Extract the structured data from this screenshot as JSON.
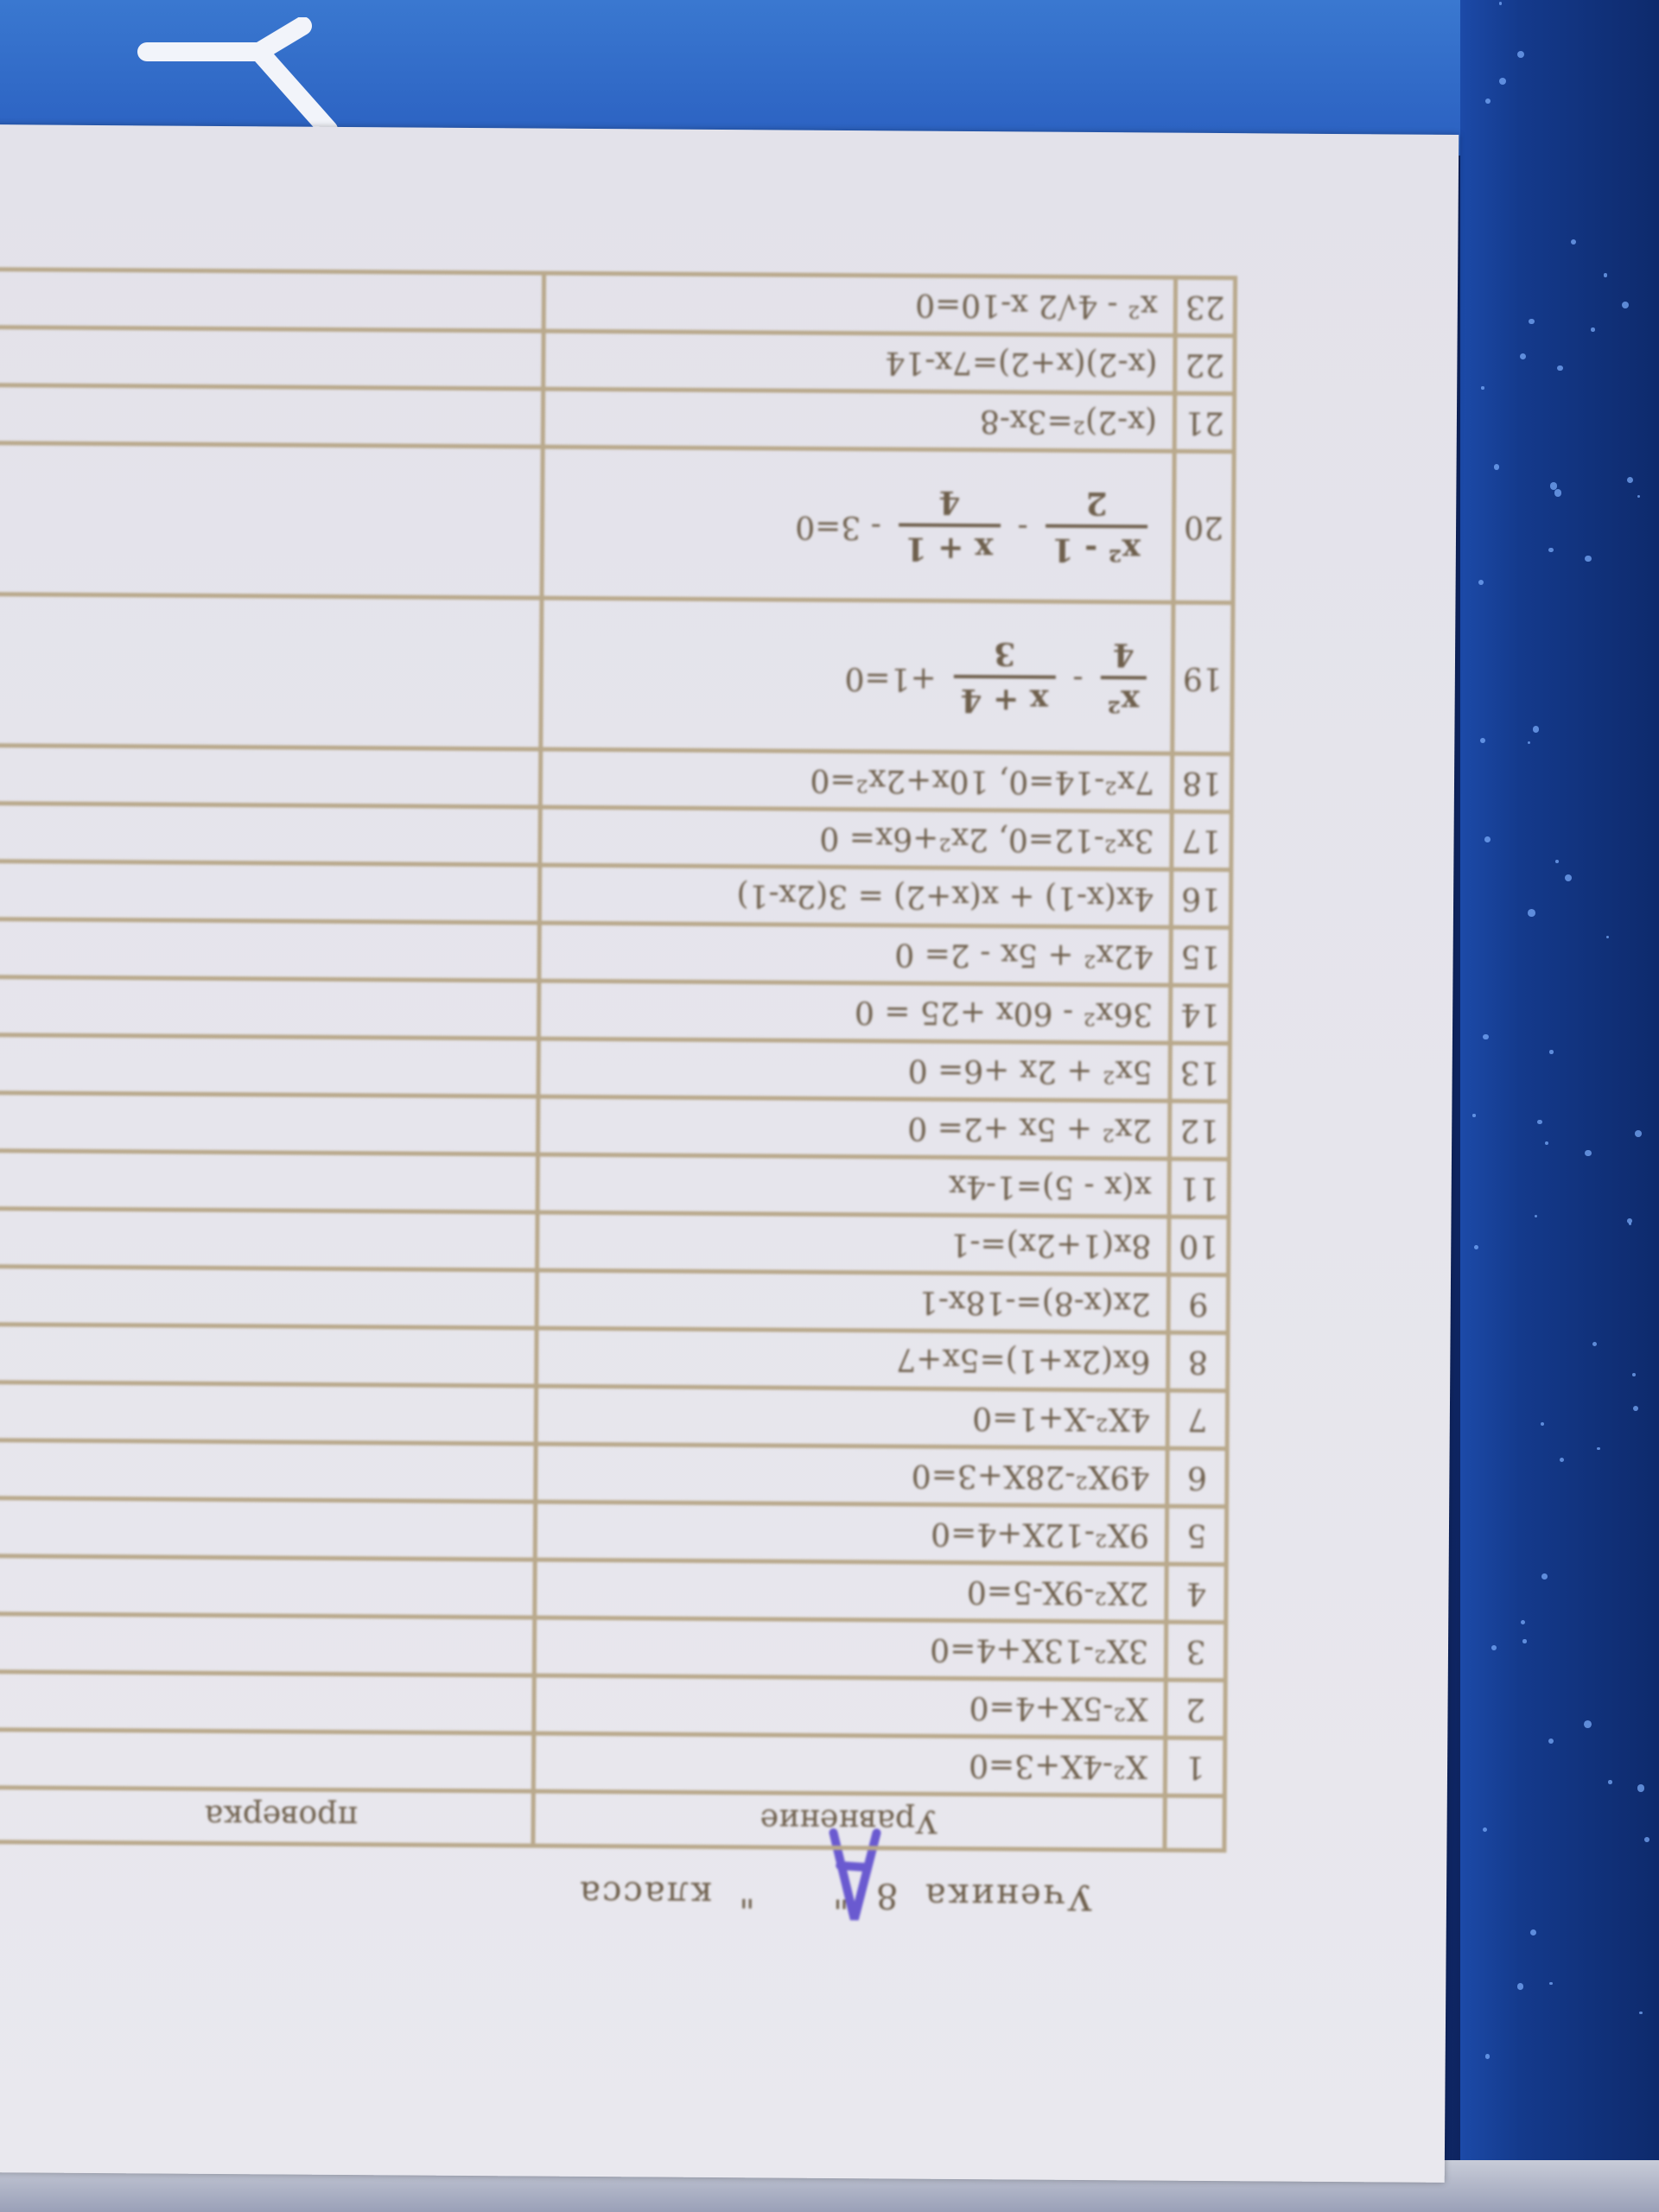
{
  "document": {
    "title": "Ученика  8  \"      \"  класса",
    "handwritten_class_letter": "А",
    "columns": {
      "equation": "Уравнение",
      "check": "проверка"
    },
    "rows": [
      {
        "n": "1",
        "eq": "X²-4X+3=0"
      },
      {
        "n": "2",
        "eq": "X²-5X+4=0"
      },
      {
        "n": "3",
        "eq": "3X²-13X+4=0"
      },
      {
        "n": "4",
        "eq": "2X²-9X-5=0"
      },
      {
        "n": "5",
        "eq": "9X²-12X+4=0"
      },
      {
        "n": "6",
        "eq": "49X²-28X+3=0"
      },
      {
        "n": "7",
        "eq": "4X²-X+1=0"
      },
      {
        "n": "8",
        "eq": "6x(2x+1)=5x+7"
      },
      {
        "n": "9",
        "eq": "2x(x-8)=-18x-1"
      },
      {
        "n": "10",
        "eq": "8x(1+2x)=-1"
      },
      {
        "n": "11",
        "eq": "x(x - 5)=1-4x"
      },
      {
        "n": "12",
        "eq": "2x² + 5x +2= 0"
      },
      {
        "n": "13",
        "eq": "5x² + 2x +6= 0"
      },
      {
        "n": "14",
        "eq": "36x² - 60x +25 = 0"
      },
      {
        "n": "15",
        "eq": "42x² + 5x - 2= 0"
      },
      {
        "n": "16",
        "eq": "4x(x-1) + x(x+2) = 3(2x-1)"
      },
      {
        "n": "17",
        "eq": "3x²-12=0, 2x²+6x= 0"
      },
      {
        "n": "18",
        "eq": "7x²-14=0, 10x+2x²=0"
      },
      {
        "n": "19",
        "frac1": {
          "num": "x²",
          "den": "4"
        },
        "op1": "-",
        "frac2": {
          "num": "x + 4",
          "den": "3"
        },
        "tail": "+1=0"
      },
      {
        "n": "20",
        "frac1": {
          "num": "x² - 1",
          "den": "2"
        },
        "op1": "-",
        "frac2": {
          "num": "x + 1",
          "den": "4"
        },
        "tail": "- 3=0"
      },
      {
        "n": "21",
        "eq": "(x-2)²=3x-8"
      },
      {
        "n": "22",
        "eq": "(x-2)(x+2)=7x-14"
      },
      {
        "n": "23",
        "eq": "x² - 4√2 x-10=0"
      }
    ]
  },
  "colors": {
    "paper": "#e6e5ec",
    "ink": "#6e5f4c",
    "grid": "#b9a98c",
    "handwriting": "#6a5ad0",
    "background": "#2456b8"
  }
}
